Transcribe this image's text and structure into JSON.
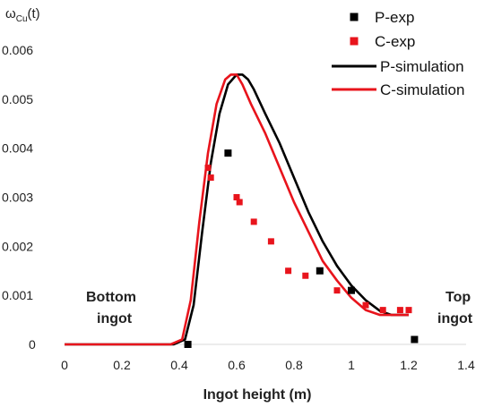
{
  "chart_data": {
    "type": "line",
    "title": "",
    "xlabel": "Ingot height (m)",
    "ylabel_main": "ω",
    "ylabel_sub": "Cu",
    "ylabel_suffix": "(t)",
    "xlim": [
      0,
      1.4
    ],
    "ylim": [
      0,
      0.006
    ],
    "x_ticks": [
      "0",
      "0.2",
      "0.4",
      "0.6",
      "0.8",
      "1",
      "1.2",
      "1.4"
    ],
    "x_tick_values": [
      0,
      0.2,
      0.4,
      0.6,
      0.8,
      1.0,
      1.2,
      1.4
    ],
    "y_ticks": [
      "0",
      "0.001",
      "0.002",
      "0.003",
      "0.004",
      "0.005",
      "0.006"
    ],
    "y_tick_values": [
      0,
      0.001,
      0.002,
      0.003,
      0.004,
      0.005,
      0.006
    ],
    "grid": false,
    "legend_position": "top-right",
    "annotations": {
      "bottom_line1": "Bottom",
      "bottom_line2": "ingot",
      "top_line1": "Top",
      "top_line2": "ingot"
    },
    "series": [
      {
        "name": "P-exp",
        "kind": "scatter",
        "color": "#000000",
        "x": [
          0.43,
          0.57,
          0.89,
          1.0,
          1.22
        ],
        "y": [
          0.0,
          0.0039,
          0.0015,
          0.0011,
          0.0001
        ]
      },
      {
        "name": "C-exp",
        "kind": "scatter",
        "color": "#e8141c",
        "x": [
          0.5,
          0.51,
          0.6,
          0.61,
          0.66,
          0.72,
          0.78,
          0.84,
          0.95,
          1.05,
          1.11,
          1.17,
          1.2
        ],
        "y": [
          0.0036,
          0.0034,
          0.003,
          0.0029,
          0.0025,
          0.0021,
          0.0015,
          0.0014,
          0.0011,
          0.0008,
          0.0007,
          0.0007,
          0.0007
        ]
      },
      {
        "name": "P-simulation",
        "kind": "line",
        "color": "#000000",
        "x": [
          0,
          0.38,
          0.42,
          0.45,
          0.48,
          0.51,
          0.54,
          0.57,
          0.6,
          0.62,
          0.64,
          0.66,
          0.7,
          0.75,
          0.8,
          0.85,
          0.9,
          0.95,
          1.0,
          1.05,
          1.1,
          1.14,
          1.17,
          1.2
        ],
        "y": [
          0,
          0,
          0.0001,
          0.0008,
          0.0023,
          0.0037,
          0.0047,
          0.0053,
          0.0055,
          0.0055,
          0.0054,
          0.0052,
          0.0047,
          0.0041,
          0.0034,
          0.0027,
          0.0021,
          0.0016,
          0.0012,
          0.0009,
          0.00068,
          0.0006,
          0.0006,
          0.0006
        ]
      },
      {
        "name": "C-simulation",
        "kind": "line",
        "color": "#e8141c",
        "x": [
          0,
          0.37,
          0.41,
          0.44,
          0.47,
          0.5,
          0.53,
          0.56,
          0.58,
          0.6,
          0.62,
          0.65,
          0.7,
          0.75,
          0.8,
          0.85,
          0.9,
          0.95,
          1.0,
          1.05,
          1.1,
          1.14,
          1.17,
          1.2
        ],
        "y": [
          0,
          0,
          0.0001,
          0.0009,
          0.0025,
          0.0039,
          0.0049,
          0.0054,
          0.0055,
          0.0055,
          0.0053,
          0.0049,
          0.0043,
          0.0036,
          0.0029,
          0.0023,
          0.0017,
          0.0013,
          0.00095,
          0.0007,
          0.0006,
          0.0006,
          0.0006,
          0.0006
        ]
      }
    ]
  }
}
